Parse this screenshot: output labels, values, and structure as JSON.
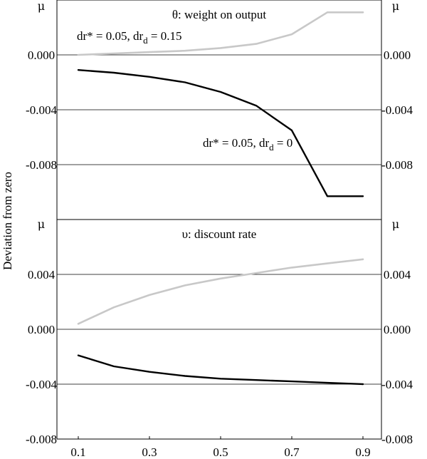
{
  "ylabel": "Deviation from zero",
  "chart_data": [
    {
      "type": "line",
      "title": "θ: weight on output",
      "unit_label": "μ",
      "x": [
        0.1,
        0.2,
        0.3,
        0.4,
        0.5,
        0.6,
        0.7,
        0.8,
        0.9
      ],
      "ylim": [
        -0.012,
        0.004
      ],
      "yticks": [
        0.0,
        -0.004,
        -0.008
      ],
      "ytick_labels": [
        "0.000",
        "-0.004",
        "-0.008"
      ],
      "series": [
        {
          "name": "dr* = 0.05, drd = 0.15",
          "label_main": "dr* = 0.05, dr",
          "label_sub": "d",
          "label_tail": " = 0.15",
          "color": "#c8c8c8",
          "values": [
            0.0,
            0.0001,
            0.0002,
            0.0003,
            0.0005,
            0.0008,
            0.0015,
            0.0031,
            0.0031
          ]
        },
        {
          "name": "dr* = 0.05, drd = 0",
          "label_main": "dr* = 0.05, dr",
          "label_sub": "d",
          "label_tail": " = 0",
          "color": "#000000",
          "values": [
            -0.0011,
            -0.0013,
            -0.0016,
            -0.002,
            -0.0027,
            -0.0037,
            -0.0055,
            -0.0103,
            -0.0103
          ]
        }
      ]
    },
    {
      "type": "line",
      "title": "υ: discount rate",
      "unit_label": "μ",
      "x": [
        0.1,
        0.2,
        0.3,
        0.4,
        0.5,
        0.6,
        0.7,
        0.8,
        0.9
      ],
      "xticks": [
        0.1,
        0.3,
        0.5,
        0.7,
        0.9
      ],
      "xtick_labels": [
        "0.1",
        "0.3",
        "0.5",
        "0.7",
        "0.9"
      ],
      "ylim": [
        -0.008,
        0.008
      ],
      "yticks": [
        0.004,
        0.0,
        -0.004,
        -0.008
      ],
      "ytick_labels": [
        "0.004",
        "0.000",
        "-0.004",
        "-0.008"
      ],
      "series": [
        {
          "name": "light",
          "color": "#c8c8c8",
          "values": [
            0.0004,
            0.0016,
            0.0025,
            0.0032,
            0.0037,
            0.0041,
            0.0045,
            0.0048,
            0.0051
          ]
        },
        {
          "name": "dark",
          "color": "#000000",
          "values": [
            -0.0019,
            -0.0027,
            -0.0031,
            -0.0034,
            -0.0036,
            -0.0037,
            -0.0038,
            -0.0039,
            -0.004
          ]
        }
      ]
    }
  ]
}
